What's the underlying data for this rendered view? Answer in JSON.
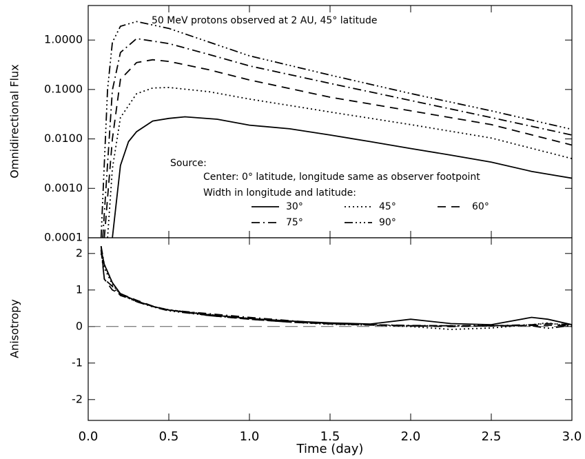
{
  "chart_data": [
    {
      "type": "line",
      "title": "50 MeV protons observed at 2 AU, 45° latitude",
      "ylabel": "Omnidirectional Flux",
      "log_y": true,
      "annotations": [
        "Source:",
        "Center: 0° latitude, longitude same as observer footpoint",
        "Width in longitude and latitude:"
      ],
      "xlim": [
        0,
        3
      ],
      "ylim": [
        0.0001,
        5
      ],
      "yticks": [
        {
          "value": 0.0001,
          "label": "0.0001"
        },
        {
          "value": 0.001,
          "label": "0.0010"
        },
        {
          "value": 0.01,
          "label": "0.0100"
        },
        {
          "value": 0.1,
          "label": "0.1000"
        },
        {
          "value": 1,
          "label": "1.0000"
        }
      ],
      "series": [
        {
          "name": "30°",
          "color": "#000000",
          "dash": "solid",
          "x": [
            0.15,
            0.2,
            0.25,
            0.3,
            0.4,
            0.5,
            0.6,
            0.8,
            1.0,
            1.25,
            1.5,
            1.75,
            2.0,
            2.25,
            2.5,
            2.75,
            3.0
          ],
          "values": [
            0.0001,
            0.0029,
            0.0088,
            0.014,
            0.023,
            0.026,
            0.028,
            0.025,
            0.019,
            0.016,
            0.012,
            0.0088,
            0.0064,
            0.0047,
            0.0034,
            0.0022,
            0.0016
          ]
        },
        {
          "name": "45°",
          "color": "#000000",
          "dash": "dotted",
          "x": [
            0.12,
            0.15,
            0.2,
            0.3,
            0.4,
            0.5,
            0.75,
            1.0,
            1.5,
            2.0,
            2.5,
            3.0
          ],
          "values": [
            0.0001,
            0.0025,
            0.027,
            0.082,
            0.107,
            0.11,
            0.09,
            0.064,
            0.035,
            0.0195,
            0.0104,
            0.004
          ]
        },
        {
          "name": "60°",
          "color": "#000000",
          "dash": "dashed",
          "x": [
            0.1,
            0.15,
            0.2,
            0.3,
            0.4,
            0.5,
            0.75,
            1.0,
            1.5,
            2.0,
            2.5,
            3.0
          ],
          "values": [
            0.0001,
            0.01,
            0.16,
            0.35,
            0.4,
            0.37,
            0.25,
            0.156,
            0.07,
            0.037,
            0.0195,
            0.0075
          ]
        },
        {
          "name": "75°",
          "color": "#000000",
          "dash": "dashdot",
          "x": [
            0.09,
            0.15,
            0.2,
            0.3,
            0.5,
            0.75,
            1.0,
            1.5,
            2.0,
            2.5,
            3.0
          ],
          "values": [
            0.0001,
            0.097,
            0.56,
            1.07,
            0.85,
            0.51,
            0.3,
            0.133,
            0.06,
            0.027,
            0.012
          ]
        },
        {
          "name": "90°",
          "color": "#000000",
          "dash": "dashdotdotdot",
          "x": [
            0.08,
            0.12,
            0.15,
            0.2,
            0.3,
            0.5,
            0.75,
            1.0,
            1.5,
            2.0,
            2.5,
            3.0
          ],
          "values": [
            0.0001,
            0.1,
            0.9,
            1.9,
            2.37,
            1.72,
            0.91,
            0.48,
            0.196,
            0.083,
            0.037,
            0.0156
          ]
        }
      ]
    },
    {
      "type": "line",
      "ylabel": "Anisotropy",
      "xlabel": "Time (day)",
      "xlim": [
        0,
        3
      ],
      "ylim": [
        -2.57,
        2.43
      ],
      "reference_line": 0,
      "xticks": [
        {
          "value": 0,
          "label": "0.0"
        },
        0.5,
        {
          "value": 1,
          "label": "1.0"
        },
        1.5,
        {
          "value": 2,
          "label": "2.0"
        },
        2.5,
        {
          "value": 3,
          "label": "3.0"
        }
      ],
      "yticks": [
        -2,
        -1,
        0,
        1,
        2
      ],
      "x": [
        0.08,
        0.1,
        0.15,
        0.2,
        0.3,
        0.4,
        0.5,
        0.75,
        1.0,
        1.25,
        1.5,
        1.75,
        2.0,
        2.25,
        2.5,
        2.75,
        2.85,
        3.0
      ],
      "series": [
        {
          "color": "#000000",
          "dash": "solid",
          "values": [
            2.1,
            1.7,
            1.2,
            0.9,
            0.7,
            0.55,
            0.45,
            0.32,
            0.22,
            0.15,
            0.1,
            0.07,
            0.2,
            0.08,
            0.05,
            0.25,
            0.2,
            0.05
          ]
        },
        {
          "color": "#000000",
          "dash": "dotted",
          "values": [
            2.0,
            1.6,
            1.15,
            0.88,
            0.68,
            0.55,
            0.46,
            0.33,
            0.22,
            0.12,
            0.06,
            0.04,
            0.0,
            -0.08,
            -0.04,
            0.05,
            0.1,
            0.0
          ]
        },
        {
          "color": "#000000",
          "dash": "dashed",
          "values": [
            2.2,
            1.3,
            1.0,
            0.9,
            0.72,
            0.56,
            0.45,
            0.3,
            0.2,
            0.12,
            0.07,
            0.04,
            0.02,
            0.0,
            0.02,
            0.03,
            0.04,
            0.02
          ]
        },
        {
          "color": "#000000",
          "dash": "dashdot",
          "values": [
            2.1,
            1.3,
            1.1,
            0.85,
            0.7,
            0.55,
            0.45,
            0.35,
            0.25,
            0.16,
            0.08,
            0.05,
            0.03,
            0.02,
            0.02,
            0.05,
            0.08,
            0.05
          ]
        },
        {
          "color": "#000000",
          "dash": "dashdotdotdot",
          "values": [
            2.2,
            1.7,
            1.2,
            0.88,
            0.68,
            0.54,
            0.43,
            0.3,
            0.2,
            0.12,
            0.08,
            0.05,
            0.02,
            0.02,
            0.03,
            0.02,
            -0.05,
            0.03
          ]
        }
      ]
    }
  ]
}
